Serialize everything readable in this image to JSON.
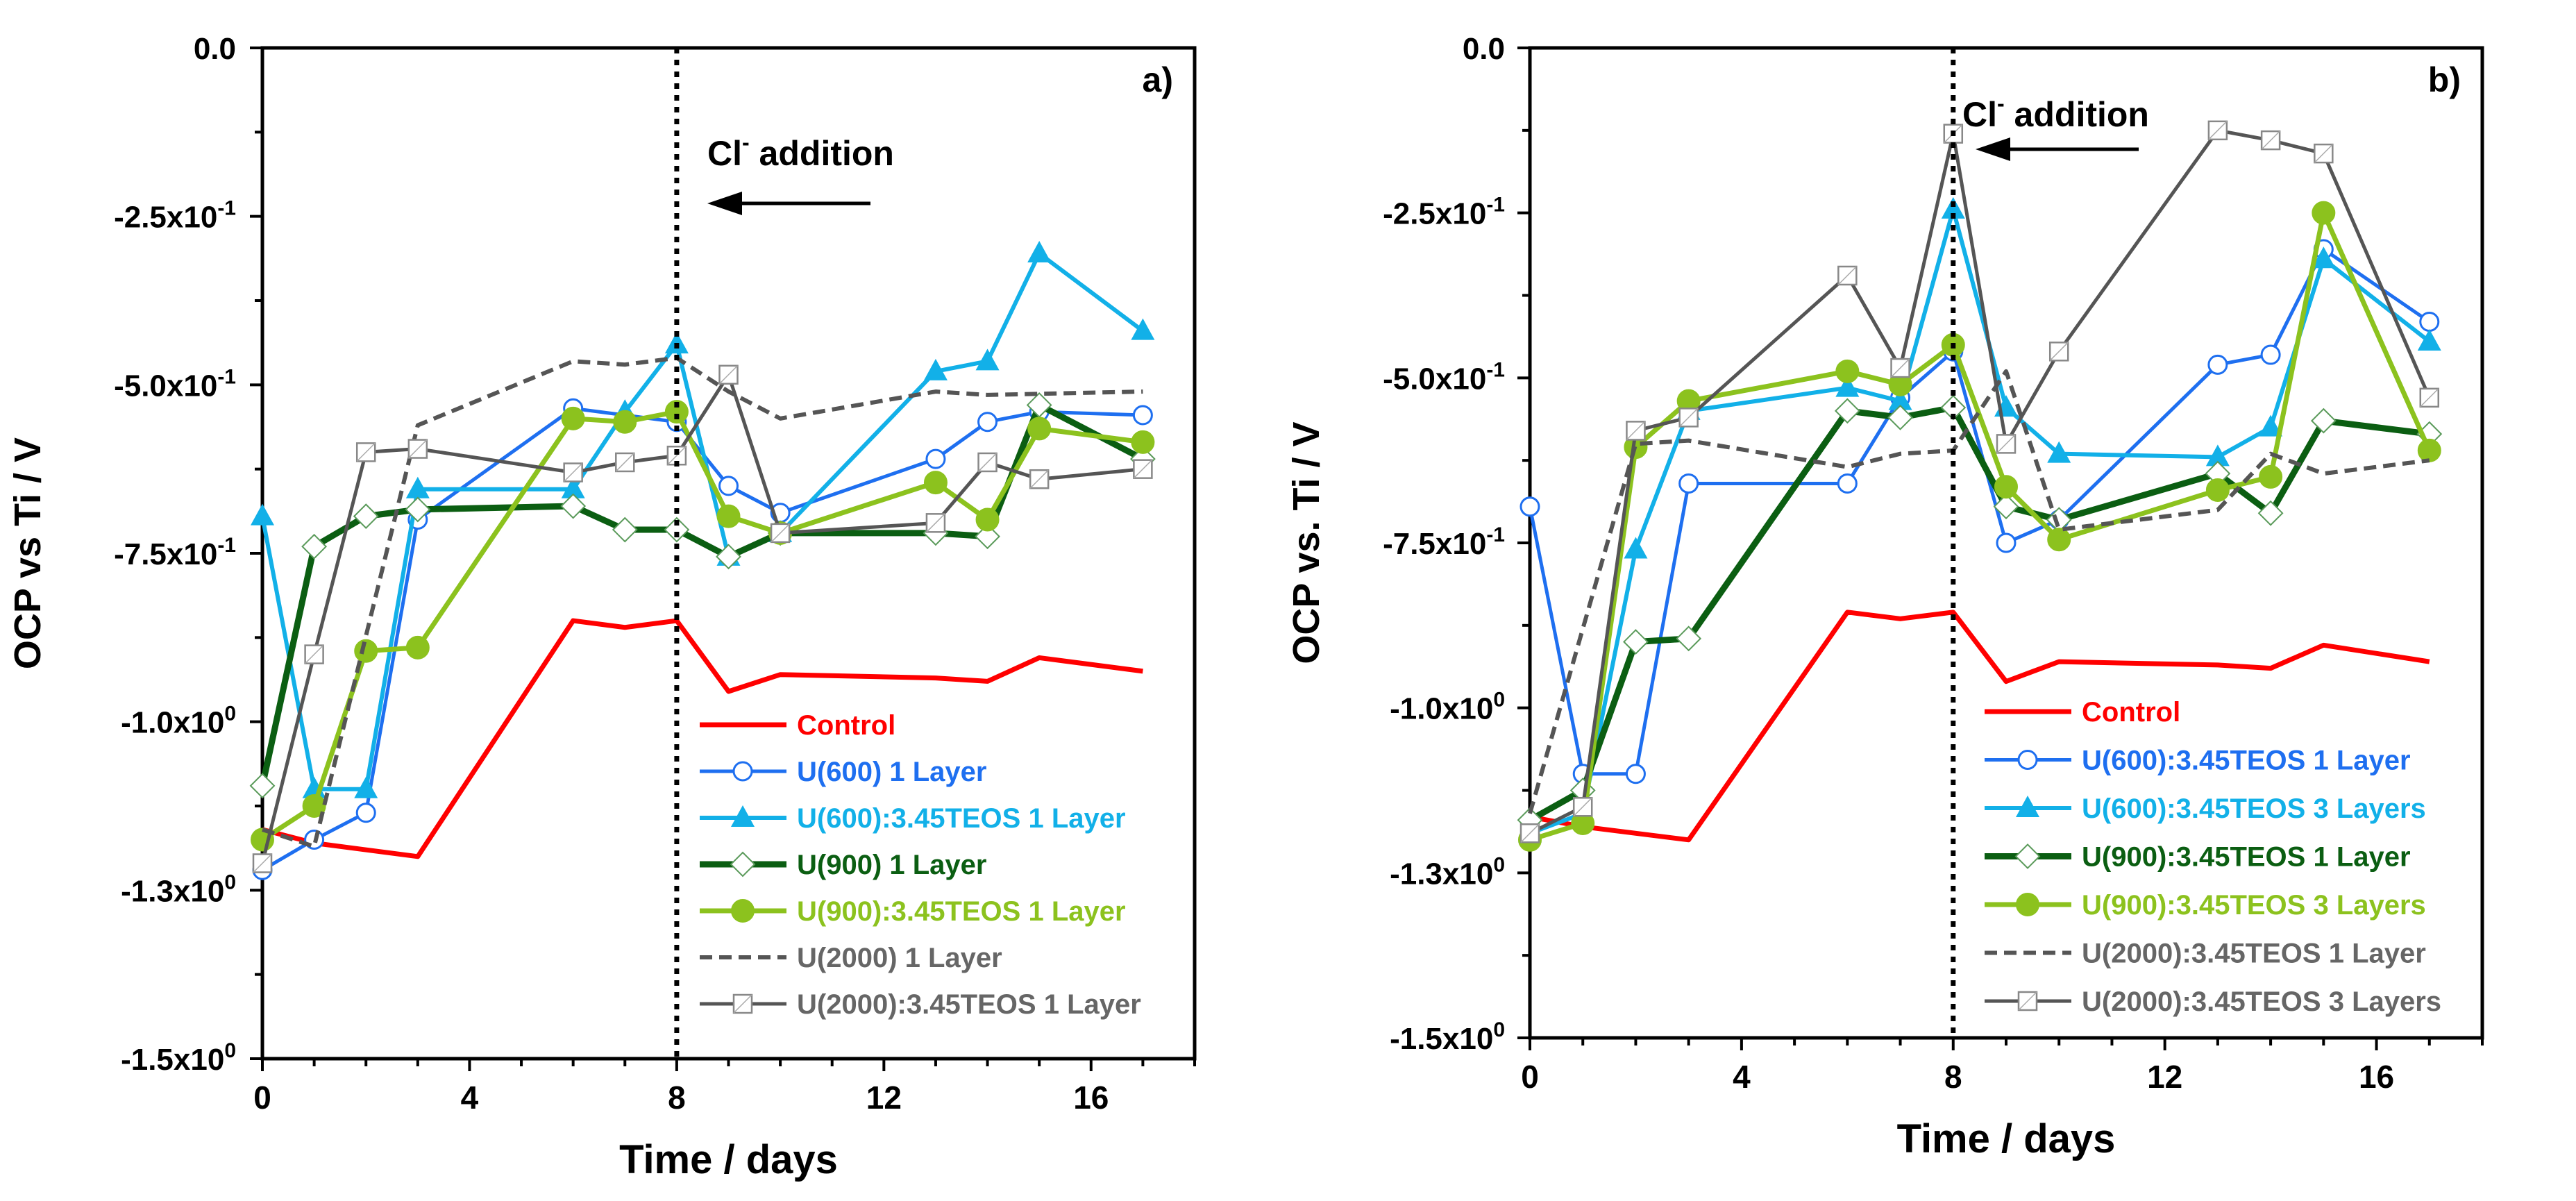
{
  "chart_data": [
    {
      "type": "line",
      "panel_label": "a)",
      "xlabel": "Time / days",
      "ylabel": "OCP vs Ti / V",
      "xlim": [
        0,
        18
      ],
      "ylim": [
        -1.5,
        0
      ],
      "xticks": [
        0,
        4,
        8,
        12,
        16
      ],
      "yticks": [
        {
          "value": 0,
          "base": "0.0",
          "exp": ""
        },
        {
          "value": -0.25,
          "base": "-2.5x10",
          "exp": "-1"
        },
        {
          "value": -0.5,
          "base": "-5.0x10",
          "exp": "-1"
        },
        {
          "value": -0.75,
          "base": "-7.5x10",
          "exp": "-1"
        },
        {
          "value": -1.0,
          "base": "-1.0x10",
          "exp": "0"
        },
        {
          "value": -1.25,
          "base": "-1.3x10",
          "exp": "0"
        },
        {
          "value": -1.5,
          "base": "-1.5x10",
          "exp": "0"
        }
      ],
      "vline": {
        "x": 8,
        "style": "dotted"
      },
      "annotation": {
        "text": "Cl",
        "sup": "-",
        "rest": " addition",
        "arrow": "left"
      },
      "grid": false,
      "legend_position": "bottom-right",
      "series": [
        {
          "name": "Control",
          "color": "#ff0000",
          "marker": "none",
          "dash": false,
          "width": 7,
          "x": [
            0,
            1,
            3,
            6,
            7,
            8,
            9,
            10,
            13,
            14,
            15,
            17
          ],
          "y": [
            -1.16,
            -1.18,
            -1.2,
            -0.85,
            -0.86,
            -0.85,
            -0.955,
            -0.93,
            -0.935,
            -0.94,
            -0.905,
            -0.925
          ]
        },
        {
          "name": "U(600) 1 Layer",
          "color": "#1e6ff0",
          "marker": "open-circle",
          "dash": false,
          "width": 5,
          "x": [
            0,
            1,
            2,
            3,
            6,
            8,
            9,
            10,
            13,
            14,
            15,
            17
          ],
          "y": [
            -1.22,
            -1.175,
            -1.135,
            -0.7,
            -0.535,
            -0.555,
            -0.65,
            -0.69,
            -0.61,
            -0.555,
            -0.54,
            -0.545
          ]
        },
        {
          "name": "U(600):3.45TEOS 1 Layer",
          "color": "#12b0e8",
          "marker": "triangle",
          "dash": false,
          "width": 6,
          "x": [
            0,
            1,
            2,
            3,
            6,
            7,
            8,
            9,
            10,
            13,
            14,
            15,
            17
          ],
          "y": [
            -0.695,
            -1.1,
            -1.1,
            -0.655,
            -0.655,
            -0.54,
            -0.44,
            -0.755,
            -0.72,
            -0.48,
            -0.465,
            -0.305,
            -0.42
          ]
        },
        {
          "name": "U(900) 1 Layer",
          "color": "#0b5e12",
          "marker": "open-diamond",
          "dash": false,
          "width": 9,
          "x": [
            0,
            1,
            2,
            3,
            6,
            7,
            8,
            9,
            10,
            13,
            14,
            15,
            17
          ],
          "y": [
            -1.095,
            -0.74,
            -0.695,
            -0.685,
            -0.68,
            -0.715,
            -0.715,
            -0.755,
            -0.72,
            -0.72,
            -0.725,
            -0.53,
            -0.61
          ]
        },
        {
          "name": "U(900):3.45TEOS 1 Layer",
          "color": "#8cc21e",
          "marker": "filled-circle",
          "dash": false,
          "width": 7,
          "x": [
            0,
            1,
            2,
            3,
            6,
            7,
            8,
            9,
            10,
            13,
            14,
            15,
            17
          ],
          "y": [
            -1.175,
            -1.125,
            -0.895,
            -0.89,
            -0.55,
            -0.555,
            -0.54,
            -0.695,
            -0.72,
            -0.645,
            -0.7,
            -0.565,
            -0.585
          ]
        },
        {
          "name": "U(2000) 1 Layer",
          "color": "#555555",
          "marker": "none",
          "dash": true,
          "width": 6,
          "x": [
            0,
            1,
            3,
            6,
            7,
            8,
            9,
            10,
            13,
            14,
            17
          ],
          "y": [
            -1.16,
            -1.185,
            -0.56,
            -0.465,
            -0.47,
            -0.46,
            -0.51,
            -0.55,
            -0.51,
            -0.515,
            -0.51
          ]
        },
        {
          "name": "U(2000):3.45TEOS 1 Layer",
          "color": "#555555",
          "marker": "open-square",
          "dash": false,
          "width": 5,
          "x": [
            0,
            1,
            2,
            3,
            6,
            7,
            8,
            9,
            10,
            13,
            14,
            15,
            17
          ],
          "y": [
            -1.21,
            -0.9,
            -0.6,
            -0.595,
            -0.63,
            -0.615,
            -0.605,
            -0.485,
            -0.72,
            -0.705,
            -0.615,
            -0.64,
            -0.625
          ]
        }
      ]
    },
    {
      "type": "line",
      "panel_label": "b)",
      "xlabel": "Time / days",
      "ylabel": "OCP vs. Ti / V",
      "xlim": [
        0,
        18
      ],
      "ylim": [
        -1.5,
        0
      ],
      "xticks": [
        0,
        4,
        8,
        12,
        16
      ],
      "yticks": [
        {
          "value": 0,
          "base": "0.0",
          "exp": ""
        },
        {
          "value": -0.25,
          "base": "-2.5x10",
          "exp": "-1"
        },
        {
          "value": -0.5,
          "base": "-5.0x10",
          "exp": "-1"
        },
        {
          "value": -0.75,
          "base": "-7.5x10",
          "exp": "-1"
        },
        {
          "value": -1.0,
          "base": "-1.0x10",
          "exp": "0"
        },
        {
          "value": -1.25,
          "base": "-1.3x10",
          "exp": "0"
        },
        {
          "value": -1.5,
          "base": "-1.5x10",
          "exp": "0"
        }
      ],
      "vline": {
        "x": 8,
        "style": "dotted"
      },
      "annotation": {
        "text": "Cl",
        "sup": "-",
        "rest": " addition",
        "arrow": "left"
      },
      "grid": false,
      "legend_position": "bottom-right",
      "series": [
        {
          "name": "Control",
          "color": "#ff0000",
          "marker": "none",
          "dash": false,
          "width": 7,
          "x": [
            0,
            1,
            3,
            6,
            7,
            8,
            9,
            10,
            13,
            14,
            15,
            17
          ],
          "y": [
            -1.165,
            -1.18,
            -1.2,
            -0.855,
            -0.865,
            -0.855,
            -0.96,
            -0.93,
            -0.935,
            -0.94,
            -0.905,
            -0.93
          ]
        },
        {
          "name": "U(600):3.45TEOS 1 Layer",
          "color": "#1e6ff0",
          "marker": "open-circle",
          "dash": false,
          "width": 5,
          "x": [
            0,
            1,
            2,
            3,
            6,
            7,
            8,
            9,
            10,
            13,
            14,
            15,
            17
          ],
          "y": [
            -0.695,
            -1.1,
            -1.1,
            -0.66,
            -0.66,
            -0.53,
            -0.46,
            -0.75,
            -0.715,
            -0.48,
            -0.465,
            -0.305,
            -0.415
          ]
        },
        {
          "name": "U(600):3.45TEOS 3 Layers",
          "color": "#12b0e8",
          "marker": "triangle",
          "dash": false,
          "width": 6,
          "x": [
            0,
            1,
            2,
            3,
            6,
            7,
            8,
            9,
            10,
            13,
            14,
            15,
            17
          ],
          "y": [
            -1.19,
            -1.16,
            -0.76,
            -0.55,
            -0.515,
            -0.535,
            -0.245,
            -0.545,
            -0.615,
            -0.62,
            -0.575,
            -0.32,
            -0.445
          ]
        },
        {
          "name": "U(900):3.45TEOS 1 Layer",
          "color": "#0b5e12",
          "marker": "open-diamond",
          "dash": false,
          "width": 9,
          "x": [
            0,
            1,
            2,
            3,
            6,
            7,
            8,
            9,
            10,
            13,
            14,
            15,
            17
          ],
          "y": [
            -1.17,
            -1.125,
            -0.9,
            -0.895,
            -0.55,
            -0.56,
            -0.545,
            -0.695,
            -0.715,
            -0.645,
            -0.705,
            -0.565,
            -0.585
          ]
        },
        {
          "name": "U(900):3.45TEOS 3 Layers",
          "color": "#8cc21e",
          "marker": "filled-circle",
          "dash": false,
          "width": 7,
          "x": [
            0,
            1,
            2,
            3,
            6,
            7,
            8,
            9,
            10,
            13,
            14,
            15,
            17
          ],
          "y": [
            -1.2,
            -1.175,
            -0.605,
            -0.535,
            -0.49,
            -0.51,
            -0.45,
            -0.665,
            -0.745,
            -0.67,
            -0.65,
            -0.25,
            -0.61
          ]
        },
        {
          "name": "U(2000):3.45TEOS 1 Layer",
          "color": "#555555",
          "marker": "none",
          "dash": true,
          "width": 6,
          "x": [
            0,
            2,
            3,
            6,
            7,
            8,
            9,
            10,
            13,
            14,
            15,
            17
          ],
          "y": [
            -1.16,
            -0.6,
            -0.595,
            -0.635,
            -0.615,
            -0.61,
            -0.49,
            -0.73,
            -0.7,
            -0.615,
            -0.645,
            -0.625
          ]
        },
        {
          "name": "U(2000):3.45TEOS 3 Layers",
          "color": "#555555",
          "marker": "open-square",
          "dash": false,
          "width": 5,
          "x": [
            0,
            1,
            2,
            3,
            6,
            7,
            8,
            9,
            10,
            13,
            14,
            15,
            17
          ],
          "y": [
            -1.19,
            -1.15,
            -0.58,
            -0.56,
            -0.345,
            -0.485,
            -0.13,
            -0.6,
            -0.46,
            -0.125,
            -0.14,
            -0.16,
            -0.53
          ]
        }
      ]
    }
  ]
}
